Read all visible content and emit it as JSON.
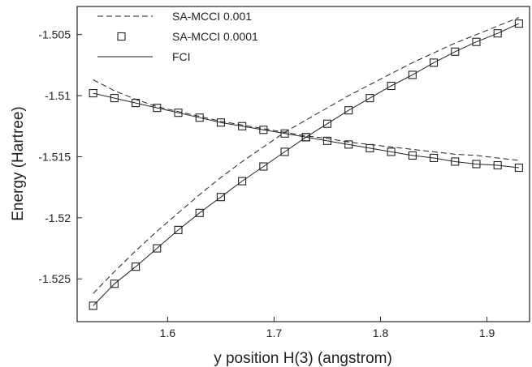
{
  "chart_data": {
    "type": "line",
    "title": "",
    "xlabel": "y position H(3) (angstrom)",
    "ylabel": "Energy (Hartree)",
    "xlim": [
      1.515,
      1.94
    ],
    "ylim": [
      -1.5285,
      -1.5027
    ],
    "xticks": [
      1.6,
      1.7,
      1.8,
      1.9
    ],
    "xtick_labels": [
      "1.6",
      "1.7",
      "1.8",
      "1.9"
    ],
    "yticks": [
      -1.525,
      -1.52,
      -1.515,
      -1.51,
      -1.505
    ],
    "ytick_labels": [
      "-1.525",
      "-1.52",
      "-1.515",
      "-1.51",
      "-1.505"
    ],
    "grid": false,
    "legend_position": "top-left",
    "x": [
      1.53,
      1.55,
      1.57,
      1.59,
      1.61,
      1.63,
      1.65,
      1.67,
      1.69,
      1.71,
      1.73,
      1.75,
      1.77,
      1.79,
      1.81,
      1.83,
      1.85,
      1.87,
      1.89,
      1.91,
      1.93
    ],
    "series": [
      {
        "name": "SA-MCCI 0.001",
        "style": "dashed",
        "color": "#222222",
        "state": "lower",
        "values": [
          -1.5087,
          -1.5096,
          -1.5103,
          -1.5109,
          -1.5113,
          -1.5117,
          -1.5121,
          -1.5124,
          -1.5127,
          -1.513,
          -1.5133,
          -1.5135,
          -1.5138,
          -1.514,
          -1.5142,
          -1.5144,
          -1.5146,
          -1.5148,
          -1.5149,
          -1.5151,
          -1.5153
        ]
      },
      {
        "name": "SA-MCCI 0.001",
        "style": "dashed",
        "color": "#222222",
        "state": "upper",
        "values": [
          -1.5262,
          -1.5244,
          -1.5227,
          -1.5211,
          -1.5196,
          -1.5181,
          -1.5167,
          -1.5154,
          -1.5142,
          -1.513,
          -1.512,
          -1.511,
          -1.51,
          -1.5091,
          -1.5082,
          -1.5073,
          -1.5065,
          -1.5057,
          -1.505,
          -1.5043,
          -1.5036
        ]
      },
      {
        "name": "SA-MCCI 0.0001",
        "style": "open-square",
        "color": "#222222",
        "state": "lower",
        "values": [
          -1.5098,
          -1.5102,
          -1.5106,
          -1.511,
          -1.5114,
          -1.5118,
          -1.5122,
          -1.5125,
          -1.5128,
          -1.5131,
          -1.5134,
          -1.5137,
          -1.514,
          -1.5143,
          -1.5146,
          -1.5149,
          -1.5151,
          -1.5154,
          -1.5156,
          -1.5157,
          -1.5159
        ]
      },
      {
        "name": "SA-MCCI 0.0001",
        "style": "open-square",
        "color": "#222222",
        "state": "upper",
        "values": [
          -1.5272,
          -1.5254,
          -1.524,
          -1.5225,
          -1.521,
          -1.5196,
          -1.5183,
          -1.517,
          -1.5158,
          -1.5146,
          -1.5134,
          -1.5123,
          -1.5112,
          -1.5102,
          -1.5092,
          -1.5083,
          -1.5073,
          -1.5064,
          -1.5056,
          -1.5049,
          -1.5041
        ]
      },
      {
        "name": "FCI",
        "style": "solid",
        "color": "#222222",
        "state": "lower",
        "values": [
          -1.5098,
          -1.5102,
          -1.5106,
          -1.511,
          -1.5114,
          -1.5118,
          -1.5122,
          -1.5125,
          -1.5128,
          -1.5131,
          -1.5134,
          -1.5137,
          -1.514,
          -1.5143,
          -1.5146,
          -1.5149,
          -1.5151,
          -1.5154,
          -1.5156,
          -1.5157,
          -1.5159
        ]
      },
      {
        "name": "FCI",
        "style": "solid",
        "color": "#222222",
        "state": "upper",
        "values": [
          -1.5272,
          -1.5254,
          -1.524,
          -1.5225,
          -1.521,
          -1.5196,
          -1.5183,
          -1.517,
          -1.5158,
          -1.5146,
          -1.5134,
          -1.5123,
          -1.5112,
          -1.5102,
          -1.5092,
          -1.5083,
          -1.5073,
          -1.5064,
          -1.5056,
          -1.5049,
          -1.5041
        ]
      }
    ],
    "legend": [
      {
        "label": "SA-MCCI 0.001",
        "style": "dashed"
      },
      {
        "label": "SA-MCCI 0.0001",
        "style": "open-square"
      },
      {
        "label": "FCI",
        "style": "solid"
      }
    ]
  }
}
